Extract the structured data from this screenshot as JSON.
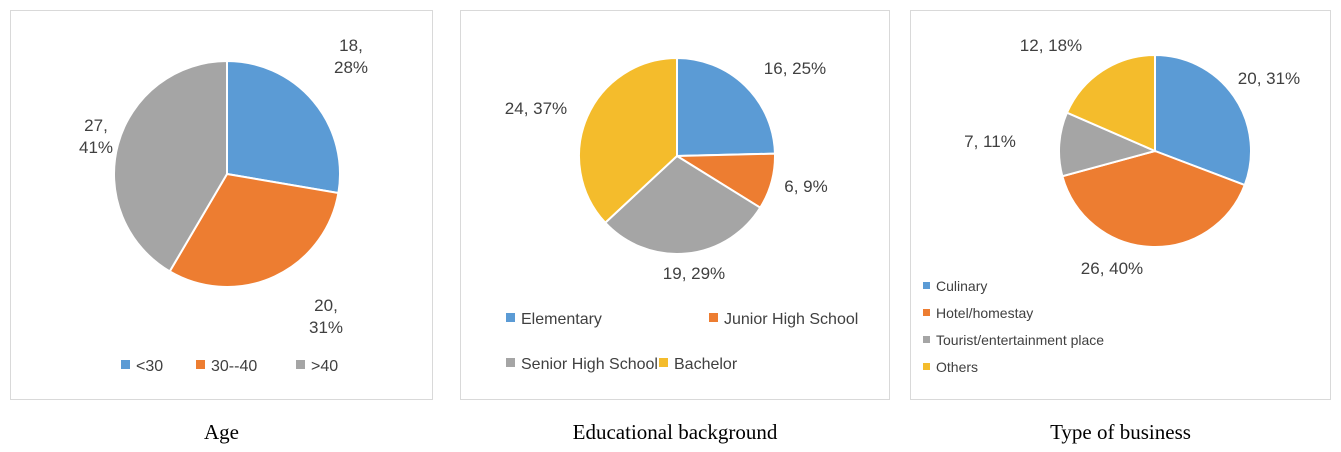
{
  "chart_data": [
    {
      "type": "pie",
      "caption": "Age",
      "categories": [
        "<30",
        "30--40",
        ">40"
      ],
      "values": [
        18,
        20,
        27
      ],
      "percents": [
        "28%",
        "31%",
        "41%"
      ],
      "colors": [
        "#5b9bd5",
        "#ed7d31",
        "#a5a5a5"
      ],
      "legend": "bottom"
    },
    {
      "type": "pie",
      "caption": "Educational background",
      "categories": [
        "Elementary",
        "Junior High School",
        "Senior High School",
        "Bachelor"
      ],
      "values": [
        16,
        6,
        19,
        24
      ],
      "percents": [
        "25%",
        "9%",
        "29%",
        "37%"
      ],
      "colors": [
        "#5b9bd5",
        "#ed7d31",
        "#a5a5a5",
        "#f4bc2c"
      ],
      "legend": "bottom"
    },
    {
      "type": "pie",
      "caption": "Type of business",
      "categories": [
        "Culinary",
        "Hotel/homestay",
        "Tourist/entertainment place",
        "Others"
      ],
      "values": [
        20,
        26,
        7,
        12
      ],
      "percents": [
        "31%",
        "40%",
        "11%",
        "18%"
      ],
      "colors": [
        "#5b9bd5",
        "#ed7d31",
        "#a5a5a5",
        "#f4bc2c"
      ],
      "legend": "bottom-left"
    }
  ]
}
